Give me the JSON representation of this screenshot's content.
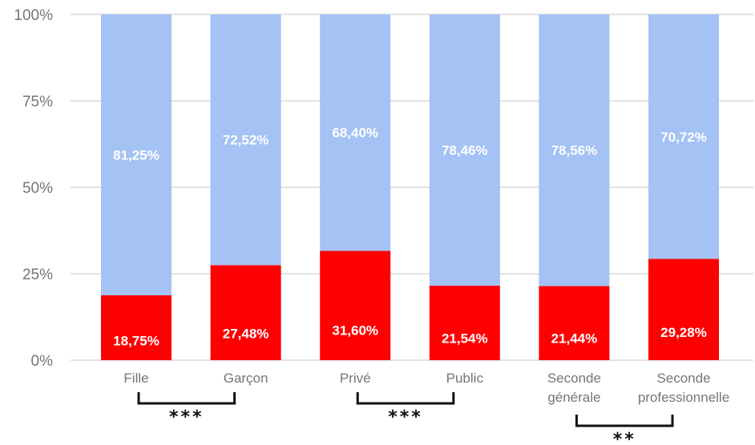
{
  "chart_data": {
    "type": "bar",
    "stacked": true,
    "categories": [
      [
        "Fille"
      ],
      [
        "Garçon"
      ],
      [
        "Privé"
      ],
      [
        "Public"
      ],
      [
        "Seconde",
        "générale"
      ],
      [
        "Seconde",
        "professionnelle"
      ]
    ],
    "series": [
      {
        "color": "#ff0000",
        "values": [
          18.75,
          27.48,
          31.6,
          21.54,
          21.44,
          29.28
        ],
        "labels": [
          "18,75%",
          "27,48%",
          "31,60%",
          "21,54%",
          "21,44%",
          "29,28%"
        ]
      },
      {
        "color": "#a4c2f4",
        "values": [
          81.25,
          72.52,
          68.4,
          78.46,
          78.56,
          70.72
        ],
        "labels": [
          "81,25%",
          "72,52%",
          "68,40%",
          "78,46%",
          "78,56%",
          "70,72%"
        ]
      }
    ],
    "yticks": [
      "0%",
      "25%",
      "50%",
      "75%",
      "100%"
    ],
    "ylim": [
      0,
      100
    ],
    "grid": true,
    "significance": [
      {
        "between": [
          0,
          1
        ],
        "label": "***"
      },
      {
        "between": [
          2,
          3
        ],
        "label": "***"
      },
      {
        "between": [
          4,
          5
        ],
        "label": "**"
      }
    ],
    "gridline_color": "#d9d9d9",
    "text_color": "#757575"
  }
}
